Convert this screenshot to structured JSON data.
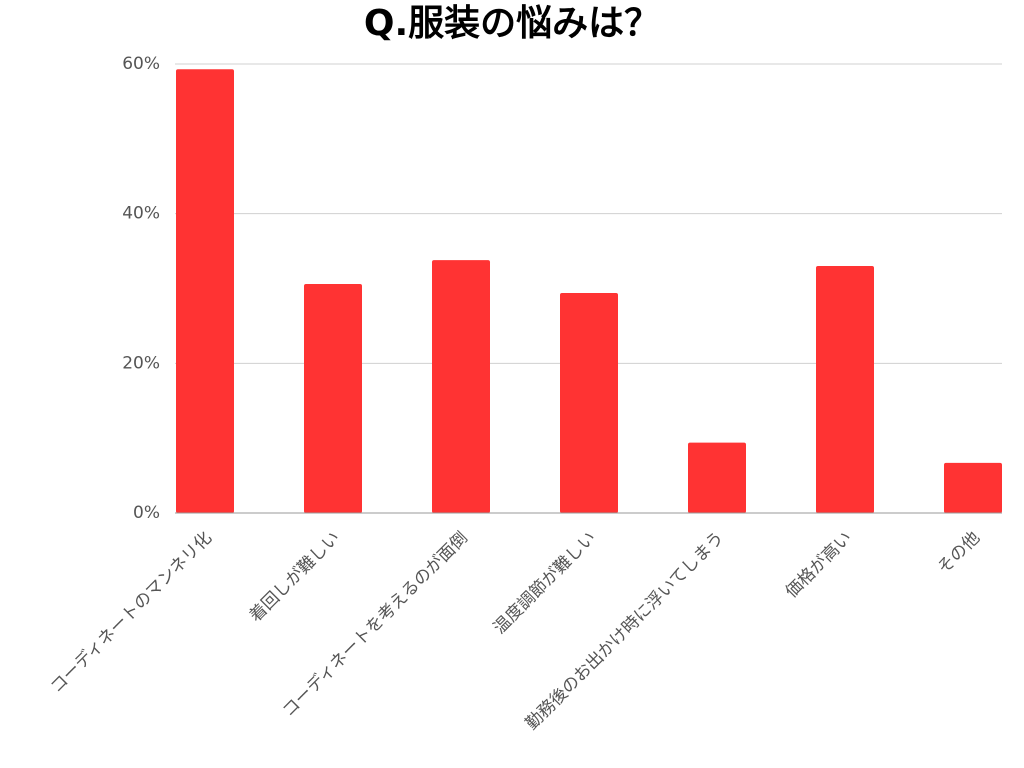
{
  "chart_data": {
    "type": "bar",
    "title": "Q.服装の悩みは？",
    "categories": [
      "コーディネートのマンネリ化",
      "着回しが難しい",
      "コーディネートを考えるのが面倒",
      "温度調節が難しい",
      "勤務後のお出かけ時に浮いてしまう",
      "価格が高い",
      "その他"
    ],
    "values": [
      59.3,
      30.6,
      33.8,
      29.4,
      9.4,
      33.0,
      6.7
    ],
    "color": "#ff3333",
    "ylim": [
      0,
      60
    ],
    "yticks": [
      {
        "value": 0,
        "label": "0%"
      },
      {
        "value": 20,
        "label": "20%"
      },
      {
        "value": 40,
        "label": "40%"
      },
      {
        "value": 60,
        "label": "60%"
      }
    ],
    "grid": true
  }
}
